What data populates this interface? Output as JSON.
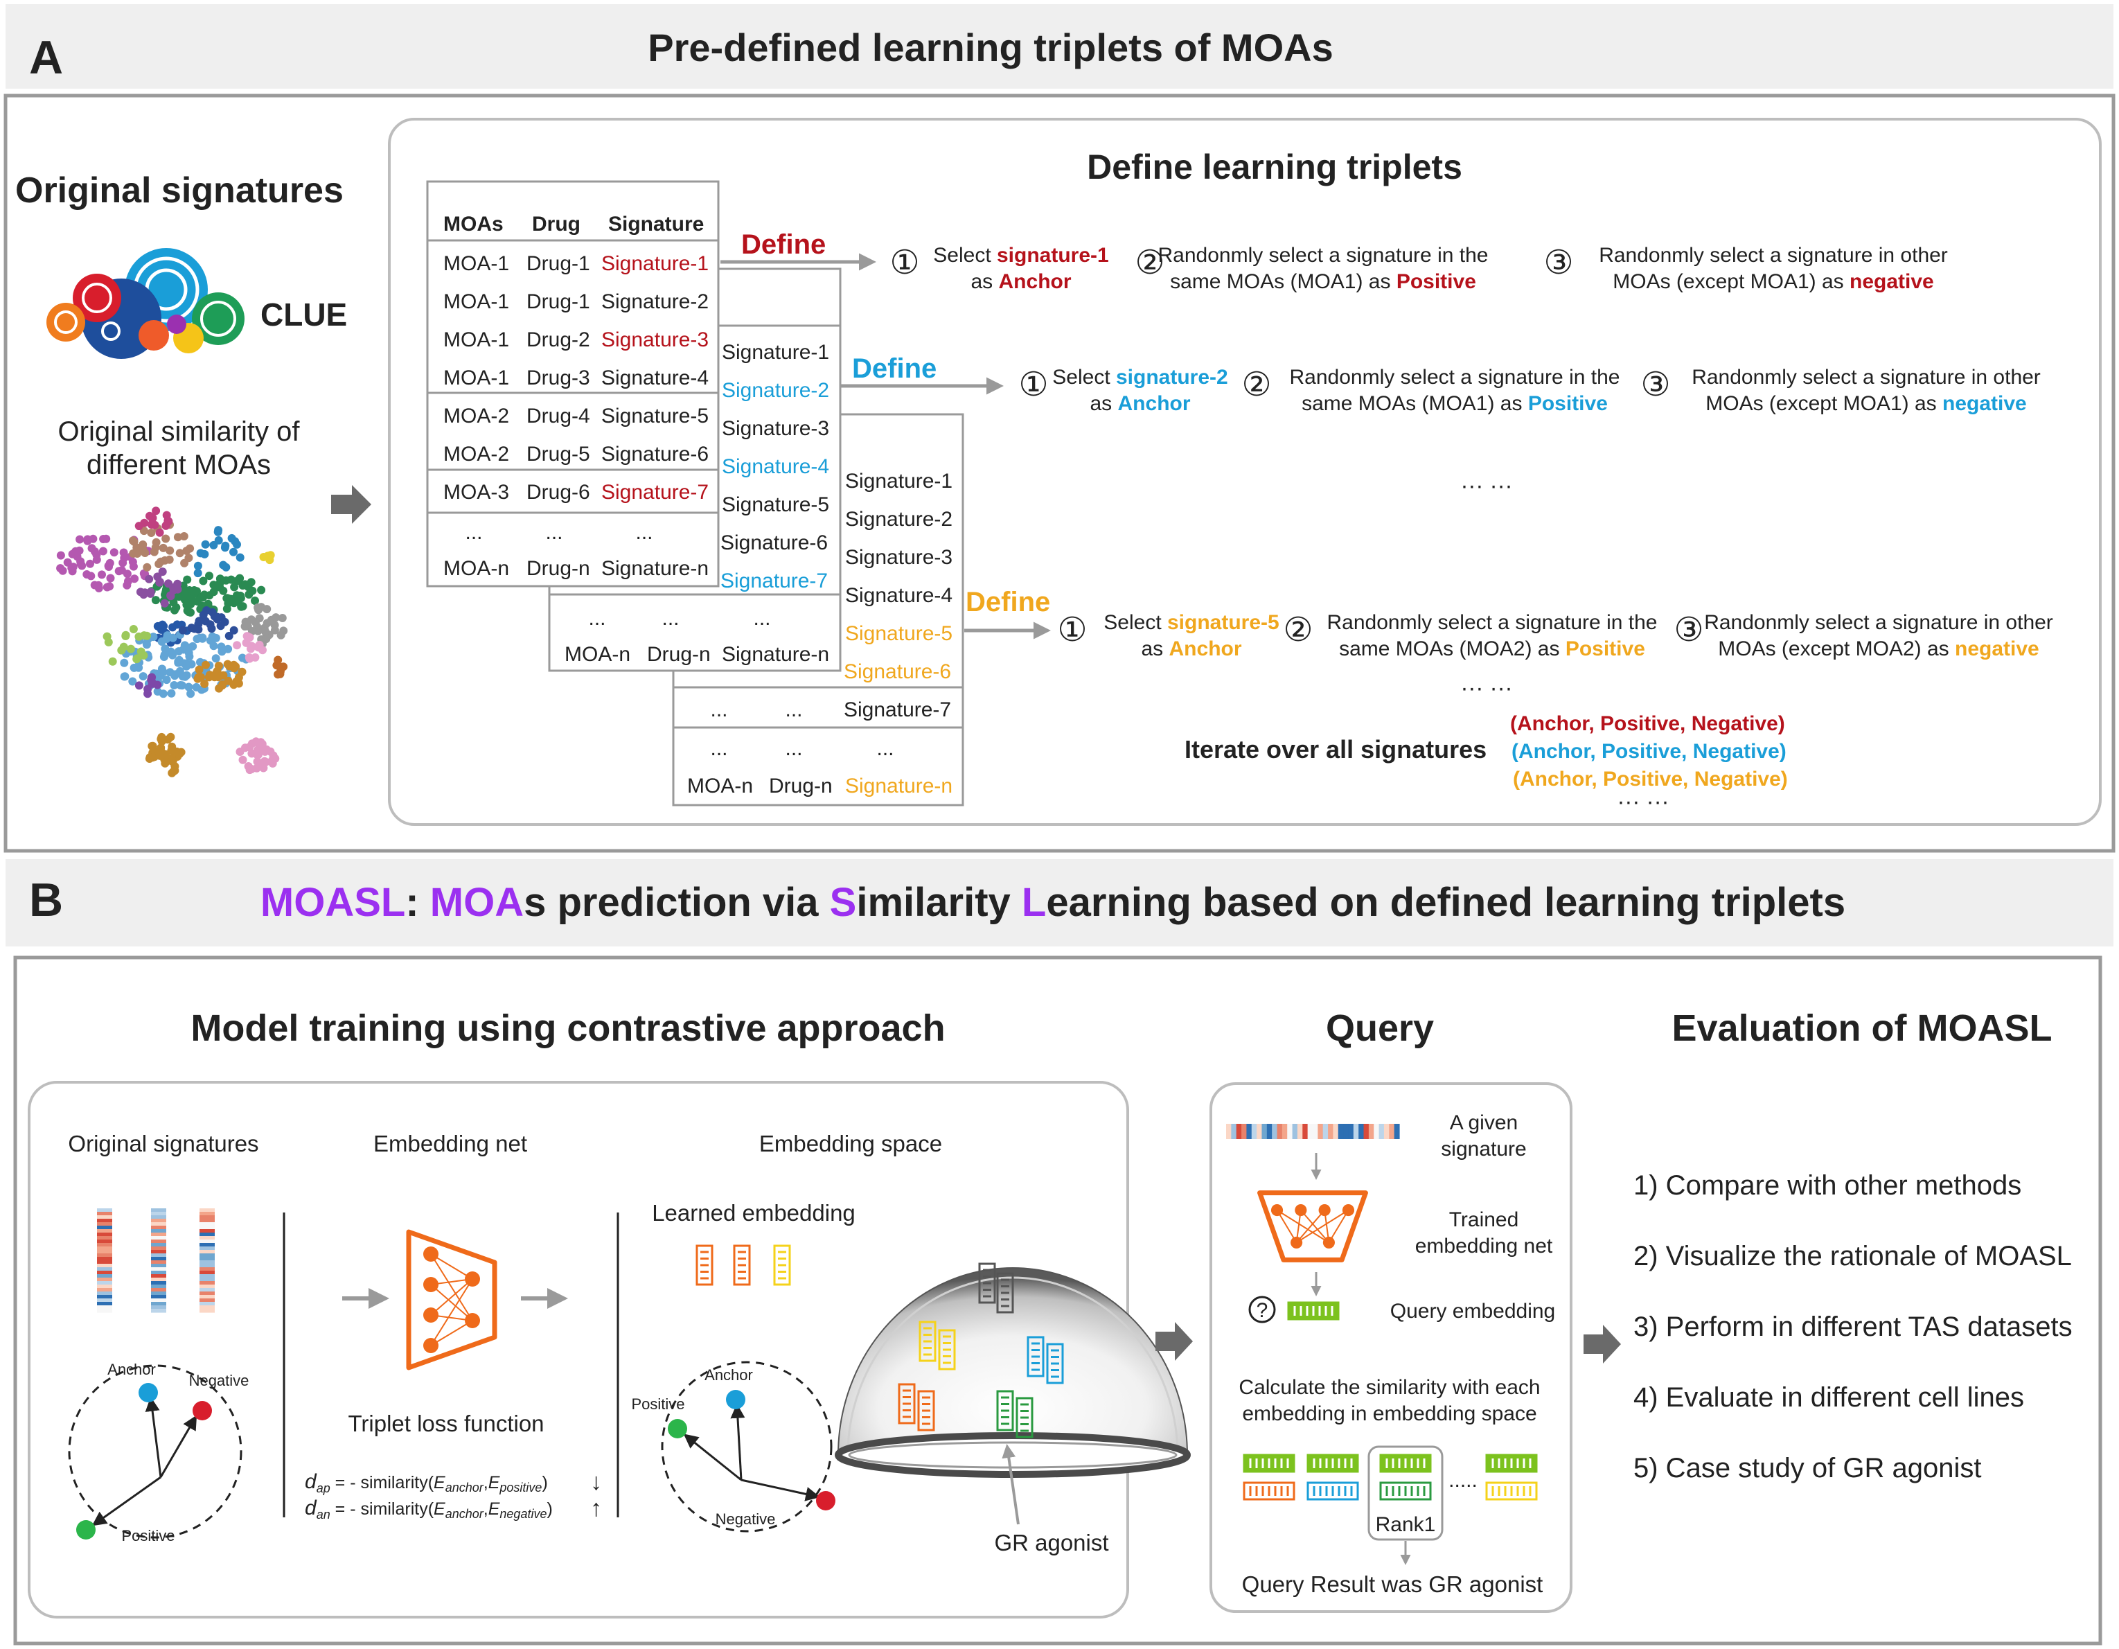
{
  "colors": {
    "red": "#b5121b",
    "blue": "#1a9ed8",
    "orange": "#f0a71e",
    "purple": "#9b30f0",
    "panel_bg": "#efefef",
    "border": "#9a9a9a"
  },
  "panel_a": {
    "letter": "A",
    "title": "Pre-defined learning triplets of MOAs",
    "original_signatures": "Original signatures",
    "clue": "CLUE",
    "similarity_caption": [
      "Original similarity of",
      "different MOAs"
    ],
    "define_title": "Define learning triplets",
    "table1": {
      "headers": [
        "MOAs",
        "Drug",
        "Signature"
      ],
      "rows": [
        [
          "MOA-1",
          "Drug-1",
          "Signature-1"
        ],
        [
          "MOA-1",
          "Drug-1",
          "Signature-2"
        ],
        [
          "MOA-1",
          "Drug-2",
          "Signature-3"
        ],
        [
          "MOA-1",
          "Drug-3",
          "Signature-4"
        ],
        [
          "MOA-2",
          "Drug-4",
          "Signature-5"
        ],
        [
          "MOA-2",
          "Drug-5",
          "Signature-6"
        ],
        [
          "MOA-3",
          "Drug-6",
          "Signature-7"
        ],
        [
          "...",
          "...",
          "..."
        ],
        [
          "MOA-n",
          "Drug-n",
          "Signature-n"
        ]
      ]
    },
    "table2_sigs": [
      "Signature-1",
      "Signature-2",
      "Signature-3",
      "Signature-4",
      "Signature-5",
      "Signature-6",
      "Signature-7"
    ],
    "table2_last": [
      "...",
      "...",
      "...",
      "MOA-n",
      "Drug-n",
      "Signature-n"
    ],
    "table3_sigs": [
      "Signature-1",
      "Signature-2",
      "Signature-3",
      "Signature-4",
      "Signature-5",
      "Signature-6",
      "Signature-7"
    ],
    "table3_last": [
      "...",
      "...",
      "...",
      "...",
      "...",
      "...",
      "MOA-n",
      "Drug-n",
      "Signature-n"
    ],
    "define_label": "Define",
    "steps": [
      {
        "s1a": "Select ",
        "s1b": "signature-1",
        "s1c": "as ",
        "s1d": "Anchor",
        "s2a": "Randonmly select a signature in the",
        "s2b": "same MOAs (MOA1)  as ",
        "s2c": "Positive",
        "s3a": "Randonmly select a signature  in other",
        "s3b": "MOAs (except MOA1)  as ",
        "s3c": "negative"
      },
      {
        "s1a": "Select ",
        "s1b": "signature-2",
        "s1c": "as ",
        "s1d": "Anchor",
        "s2a": "Randonmly select a signature in the",
        "s2b": "same MOAs (MOA1)  as ",
        "s2c": "Positive",
        "s3a": "Randonmly select a signature in other",
        "s3b": "MOAs (except MOA1)  as ",
        "s3c": "negative"
      },
      {
        "s1a": "Select ",
        "s1b": "signature-5",
        "s1c": "as ",
        "s1d": "Anchor",
        "s2a": "Randonmly select a signature in the",
        "s2b": "same MOAs (MOA2)  as ",
        "s2c": "Positive",
        "s3a": "Randonmly select a signature in other",
        "s3b": "MOAs (except MOA2)  as ",
        "s3c": "negative"
      }
    ],
    "circled": [
      "①",
      "②",
      "③"
    ],
    "ellipsis": "··· ···",
    "iterate": "Iterate over all signatures",
    "triplet": "(Anchor, Positive, Negative)"
  },
  "panel_b": {
    "letter": "B",
    "title_parts": [
      "MOASL",
      ": ",
      "MOA",
      "s prediction via ",
      "S",
      "imilarity ",
      "L",
      "earning based on defined learning triplets"
    ],
    "training_title": "Model training using contrastive approach",
    "original_signatures": "Original signatures",
    "embedding_net": "Embedding net",
    "embedding_space": "Embedding space",
    "learned_embedding": "Learned embedding",
    "anchor": "Anchor",
    "negative": "Negative",
    "positive": "Positive",
    "triplet_loss": "Triplet loss function",
    "dap_sym": "d",
    "dap_sub": "ap",
    "dan_sym": "d",
    "dan_sub": "an",
    "eq_mid": " = - similarity(",
    "e_sym": "E",
    "e_anchor": "anchor",
    "e_positive": "positive",
    "e_negative": "negative",
    "comma": ",",
    "eq_end": ")",
    "down_arrow": "↓",
    "up_arrow": "↑",
    "gr_agonist": "GR agonist",
    "query_title": "Query",
    "given_signature": [
      "A given",
      "signature"
    ],
    "trained_net": [
      "Trained",
      "embedding net"
    ],
    "question_mark": "?",
    "query_embedding": "Query  embedding",
    "calc": [
      "Calculate the similarity with each",
      "embedding  in embedding space"
    ],
    "dots5": ".....",
    "rank1": "Rank1",
    "result": "Query Result was GR agonist",
    "eval_title": "Evaluation of MOASL",
    "eval_items": [
      "1) Compare with other methods",
      "2) Visualize the rationale of MOASL",
      "3) Perform in different TAS datasets",
      "4) Evaluate in different cell lines",
      "5) Case study of GR agonist"
    ]
  }
}
